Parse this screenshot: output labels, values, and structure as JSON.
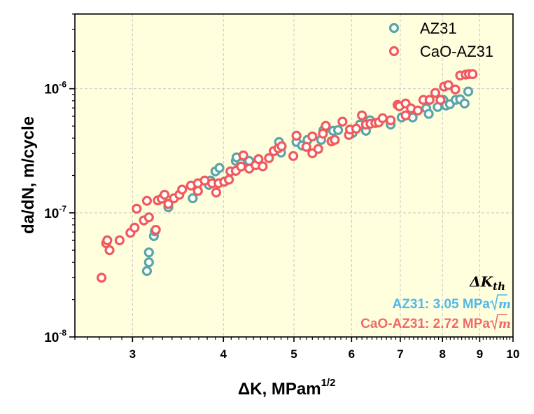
{
  "chart_data": {
    "type": "scatter",
    "title": "",
    "xlabel": "ΔK, MPam",
    "xlabel_sup": "1/2",
    "ylabel": "da/dN, m/cycle",
    "xscale": "log",
    "yscale": "log",
    "xlim": [
      2.5,
      10
    ],
    "ylim": [
      1e-08,
      4e-06
    ],
    "grid": true,
    "background": "#ffffde",
    "x_ticks": [
      {
        "value": 3,
        "label": "3"
      },
      {
        "value": 4,
        "label": "4"
      },
      {
        "value": 5,
        "label": "5"
      },
      {
        "value": 6,
        "label": "6"
      },
      {
        "value": 7,
        "label": "7"
      },
      {
        "value": 8,
        "label": "8"
      },
      {
        "value": 9,
        "label": "9"
      },
      {
        "value": 10,
        "label": "10"
      }
    ],
    "y_ticks": [
      {
        "value": 1e-08,
        "base": "10",
        "exp": "-8"
      },
      {
        "value": 1e-07,
        "base": "10",
        "exp": "-7"
      },
      {
        "value": 1e-06,
        "base": "10",
        "exp": "-6"
      }
    ],
    "legend": {
      "position": "top-right"
    },
    "series": [
      {
        "name": "AZ31",
        "color": "#5aa5a5",
        "marker": "open-circle",
        "x": [
          3.14,
          3.16,
          3.16,
          3.21,
          3.22,
          3.36,
          3.63,
          3.82,
          3.84,
          3.9,
          3.95,
          4.16,
          4.17,
          4.23,
          4.34,
          4.77,
          4.8,
          5.04,
          5.13,
          5.22,
          5.45,
          5.49,
          5.66,
          5.75,
          6.02,
          6.16,
          6.28,
          6.36,
          6.79,
          7.03,
          7.28,
          7.6,
          7.66,
          7.88,
          8.02,
          8.09,
          8.19,
          8.34,
          8.46,
          8.58,
          8.68
        ],
        "y": [
          3.4e-08,
          4e-08,
          4.8e-08,
          6.5e-08,
          7.1e-08,
          1.11e-07,
          1.31e-07,
          1.68e-07,
          1.82e-07,
          2.16e-07,
          2.3e-07,
          2.62e-07,
          2.8e-07,
          2.5e-07,
          2.62e-07,
          3.72e-07,
          3.06e-07,
          3.72e-07,
          3.49e-07,
          3.87e-07,
          3.87e-07,
          4.64e-07,
          4.58e-07,
          4.64e-07,
          4.4e-07,
          5.15e-07,
          4.58e-07,
          5.57e-07,
          5.15e-07,
          5.87e-07,
          5.87e-07,
          6.95e-07,
          6.27e-07,
          7.13e-07,
          8.13e-07,
          7.32e-07,
          7.51e-07,
          8.13e-07,
          8.22e-07,
          7.61e-07,
          9.5e-07
        ]
      },
      {
        "name": "CaO-AZ31",
        "color": "#f05a5a",
        "marker": "open-circle",
        "x": [
          2.72,
          2.76,
          2.77,
          2.79,
          2.88,
          2.98,
          3.02,
          3.04,
          3.11,
          3.16,
          3.14,
          3.23,
          3.25,
          3.29,
          3.32,
          3.36,
          3.42,
          3.48,
          3.51,
          3.61,
          3.69,
          3.69,
          3.77,
          3.86,
          3.91,
          3.94,
          4.01,
          4.07,
          4.09,
          4.16,
          4.23,
          4.26,
          4.34,
          4.43,
          4.47,
          4.53,
          4.62,
          4.69,
          4.76,
          4.81,
          4.99,
          5.04,
          5.2,
          5.3,
          5.3,
          5.4,
          5.48,
          5.53,
          5.63,
          5.69,
          5.83,
          5.95,
          5.97,
          6.09,
          6.2,
          6.28,
          6.37,
          6.47,
          6.54,
          6.62,
          6.79,
          6.94,
          6.98,
          7.12,
          7.12,
          7.24,
          7.4,
          7.53,
          7.68,
          7.82,
          7.95,
          8.04,
          8.15,
          8.33,
          8.46,
          8.61,
          8.7,
          8.8
        ],
        "y": [
          3e-08,
          5.7e-08,
          6e-08,
          5e-08,
          6e-08,
          6.9e-08,
          7.6e-08,
          1.08e-07,
          8.7e-08,
          9.2e-08,
          1.25e-07,
          7.3e-08,
          1.26e-07,
          1.3e-07,
          1.4e-07,
          1.18e-07,
          1.31e-07,
          1.4e-07,
          1.54e-07,
          1.66e-07,
          1.73e-07,
          1.5e-07,
          1.82e-07,
          1.73e-07,
          1.46e-07,
          1.73e-07,
          1.78e-07,
          1.85e-07,
          2.16e-07,
          2.18e-07,
          2.36e-07,
          2.9e-07,
          2.27e-07,
          2.42e-07,
          2.71e-07,
          2.37e-07,
          2.76e-07,
          3.14e-07,
          3.31e-07,
          3.44e-07,
          2.87e-07,
          4.18e-07,
          3.4e-07,
          4.13e-07,
          3.02e-07,
          3.27e-07,
          4.35e-07,
          5.02e-07,
          3.77e-07,
          3.87e-07,
          5.43e-07,
          4.24e-07,
          4.7e-07,
          4.76e-07,
          6.1e-07,
          5.15e-07,
          5.22e-07,
          5.29e-07,
          5.36e-07,
          5.79e-07,
          5.57e-07,
          7.41e-07,
          7.22e-07,
          7.61e-07,
          6.1e-07,
          6.95e-07,
          6.68e-07,
          8.13e-07,
          8.13e-07,
          9.25e-07,
          8.13e-07,
          1.04e-06,
          1.07e-06,
          9.87e-07,
          1.28e-06,
          1.3e-06,
          1.31e-06,
          1.31e-06
        ]
      }
    ],
    "annotations": {
      "heading": "ΔK",
      "heading_sub": "th",
      "lines": [
        {
          "label": "AZ31: 3.05 MPa",
          "unit": "m",
          "color": "#4fb8ec"
        },
        {
          "label": "CaO-AZ31: 2.72 MPa",
          "unit": "m",
          "color": "#f06a6a"
        }
      ]
    }
  }
}
